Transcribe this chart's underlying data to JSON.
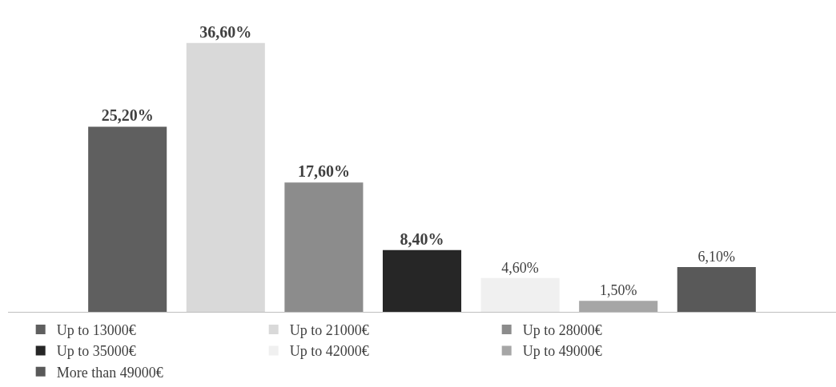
{
  "chart_data": {
    "type": "bar",
    "categories": [
      null
    ],
    "legend": "bottom",
    "series": [
      {
        "name": "Up to 13000€",
        "color": "#5f5f5f",
        "values": [
          25.2
        ],
        "value_labels": [
          "25,20%"
        ]
      },
      {
        "name": "Up to 21000€",
        "color": "#d9d9d9",
        "values": [
          36.6
        ],
        "value_labels": [
          "36,60%"
        ]
      },
      {
        "name": "Up to 28000€",
        "color": "#8c8c8c",
        "values": [
          17.6
        ],
        "value_labels": [
          "17,60%"
        ]
      },
      {
        "name": "Up to 35000€",
        "color": "#262626",
        "values": [
          8.4
        ],
        "value_labels": [
          "8,40%"
        ]
      },
      {
        "name": "Up to 42000€",
        "color": "#f0f0f0",
        "values": [
          4.6
        ],
        "value_labels": [
          "4,60%"
        ]
      },
      {
        "name": "Up to 49000€",
        "color": "#a6a6a6",
        "values": [
          1.5
        ],
        "value_labels": [
          "1,50%"
        ]
      },
      {
        "name": "More than 49000€",
        "color": "#595959",
        "values": [
          6.1
        ],
        "value_labels": [
          "6,10%"
        ]
      }
    ]
  }
}
